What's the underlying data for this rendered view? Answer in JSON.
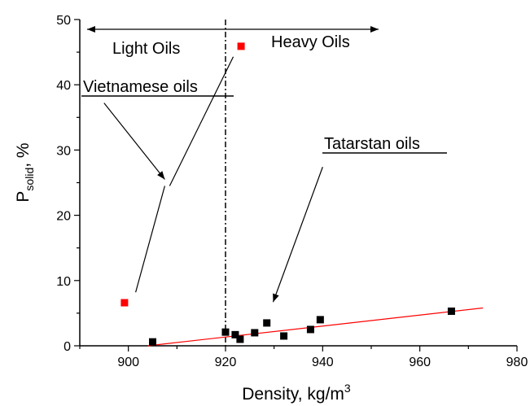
{
  "chart_data": {
    "type": "scatter",
    "title": "",
    "xlabel": "Density, kg/m",
    "xlabel_sup": "3",
    "ylabel_main": "P",
    "ylabel_sub": "solid",
    "ylabel_rest": ", %",
    "xlim": [
      890,
      980
    ],
    "ylim": [
      0,
      50
    ],
    "xticks": [
      900,
      920,
      940,
      960,
      980
    ],
    "yticks": [
      0,
      10,
      20,
      30,
      40,
      50
    ],
    "grid": false,
    "legend": "none",
    "series": [
      {
        "color": "#ff0000",
        "marker": "square",
        "points": [
          {
            "x": 899.2,
            "y": 6.6
          },
          {
            "x": 923.2,
            "y": 45.9
          }
        ]
      },
      {
        "color": "#000000",
        "marker": "square",
        "points": [
          {
            "x": 905.0,
            "y": 0.6
          },
          {
            "x": 920.0,
            "y": 2.1
          },
          {
            "x": 922.0,
            "y": 1.7
          },
          {
            "x": 923.0,
            "y": 1.0
          },
          {
            "x": 926.0,
            "y": 2.0
          },
          {
            "x": 928.5,
            "y": 3.5
          },
          {
            "x": 932.0,
            "y": 1.5
          },
          {
            "x": 937.5,
            "y": 2.5
          },
          {
            "x": 939.5,
            "y": 4.0
          },
          {
            "x": 966.5,
            "y": 5.3
          }
        ]
      }
    ],
    "fit_line": {
      "color": "#ff0000",
      "start": {
        "x": 904,
        "y": 0
      },
      "end": {
        "x": 973,
        "y": 5.8
      }
    },
    "divider_x": 920,
    "annotations": {
      "light_oils": "Light Oils",
      "heavy_oils": "Heavy Oils",
      "vietnamese_oils": "Vietnamese oils",
      "tatarstan_oils": "Tatarstan oils"
    },
    "annotation_arrows": [
      {
        "from": {
          "x": 895,
          "y": 37.2
        },
        "to": {
          "x": 907.5,
          "y": 25.5
        }
      },
      {
        "from": {
          "x": 940,
          "y": 27.4
        },
        "to": {
          "x": 929.8,
          "y": 6.7
        }
      }
    ],
    "pointer_lines": [
      {
        "from": {
          "x": 907.5,
          "y": 24.5
        },
        "to": {
          "x": 901.5,
          "y": 8.2
        }
      },
      {
        "from": {
          "x": 908.5,
          "y": 24.5
        },
        "to": {
          "x": 921.6,
          "y": 44.3
        }
      }
    ],
    "range_arrows": [
      {
        "from": {
          "x": 920,
          "y": 48.5
        },
        "to": {
          "x": 891.5,
          "y": 48.5
        }
      },
      {
        "from": {
          "x": 920,
          "y": 48.5
        },
        "to": {
          "x": 951.5,
          "y": 48.5
        }
      }
    ]
  }
}
